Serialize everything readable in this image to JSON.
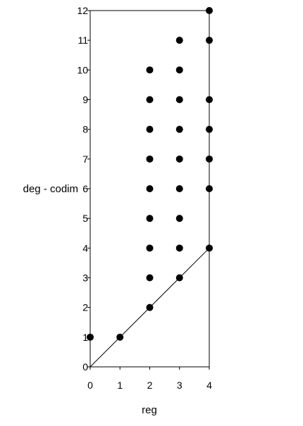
{
  "chart_data": {
    "type": "scatter",
    "title": "",
    "xlabel": "reg",
    "ylabel": "deg - codim",
    "xlim": [
      0,
      4
    ],
    "ylim": [
      0,
      12
    ],
    "x_ticks": [
      "0",
      "1",
      "2",
      "3",
      "4"
    ],
    "y_ticks": [
      "0",
      "1",
      "2",
      "3",
      "4",
      "5",
      "6",
      "7",
      "8",
      "9",
      "10",
      "11",
      "12"
    ],
    "grid": false,
    "legend": "none",
    "series": [
      {
        "points": [
          [
            0,
            1
          ],
          [
            1,
            1
          ],
          [
            2,
            2
          ],
          [
            2,
            3
          ],
          [
            2,
            4
          ],
          [
            2,
            5
          ],
          [
            2,
            6
          ],
          [
            2,
            7
          ],
          [
            2,
            8
          ],
          [
            2,
            9
          ],
          [
            2,
            10
          ],
          [
            3,
            3
          ],
          [
            3,
            4
          ],
          [
            3,
            5
          ],
          [
            3,
            6
          ],
          [
            3,
            7
          ],
          [
            3,
            8
          ],
          [
            3,
            9
          ],
          [
            3,
            10
          ],
          [
            3,
            11
          ],
          [
            4,
            4
          ],
          [
            4,
            6
          ],
          [
            4,
            7
          ],
          [
            4,
            8
          ],
          [
            4,
            9
          ],
          [
            4,
            11
          ],
          [
            4,
            12
          ]
        ]
      }
    ],
    "reference_line": [
      [
        0,
        0
      ],
      [
        4,
        4
      ]
    ],
    "colors": {
      "marker": "#000000",
      "line": "#000000",
      "frame": "#000000"
    }
  }
}
